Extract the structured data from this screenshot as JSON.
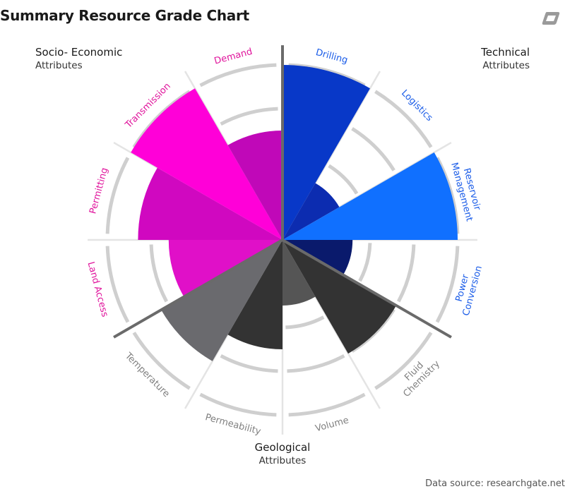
{
  "title": "Summary Resource Grade Chart",
  "source": "Data source: researchgate.net",
  "groups": {
    "socio": {
      "title": "Socio- Economic",
      "sub": "Attributes"
    },
    "technical": {
      "title": "Technical",
      "sub": "Attributes"
    },
    "geological": {
      "title": "Geological",
      "sub": "Attributes"
    }
  },
  "chart_data": {
    "type": "polar-bar",
    "rmax": 4,
    "categories": [
      "Drilling",
      "Logistics",
      "Reservoir Management",
      "Power Conversion",
      "Fluid Chemistry",
      "Volume",
      "Permeability",
      "Temperature",
      "Land Access",
      "Permitting",
      "Transmission",
      "Demand"
    ],
    "values": [
      4,
      1.5,
      4,
      1.6,
      3,
      1.5,
      2.5,
      3.2,
      2.6,
      3.3,
      4,
      2.5
    ],
    "colors": [
      "#0838c8",
      "#0c2cb0",
      "#1070ff",
      "#0a1a6c",
      "#333333",
      "#555555",
      "#333333",
      "#6a6a6e",
      "#e010c8",
      "#d008c0",
      "#ff00d8",
      "#c008b8"
    ],
    "label_colors": [
      "#1a5ce8",
      "#1a5ce8",
      "#1a5ce8",
      "#1a5ce8",
      "#808080",
      "#808080",
      "#808080",
      "#808080",
      "#e0149c",
      "#e0149c",
      "#e0149c",
      "#e0149c"
    ]
  }
}
